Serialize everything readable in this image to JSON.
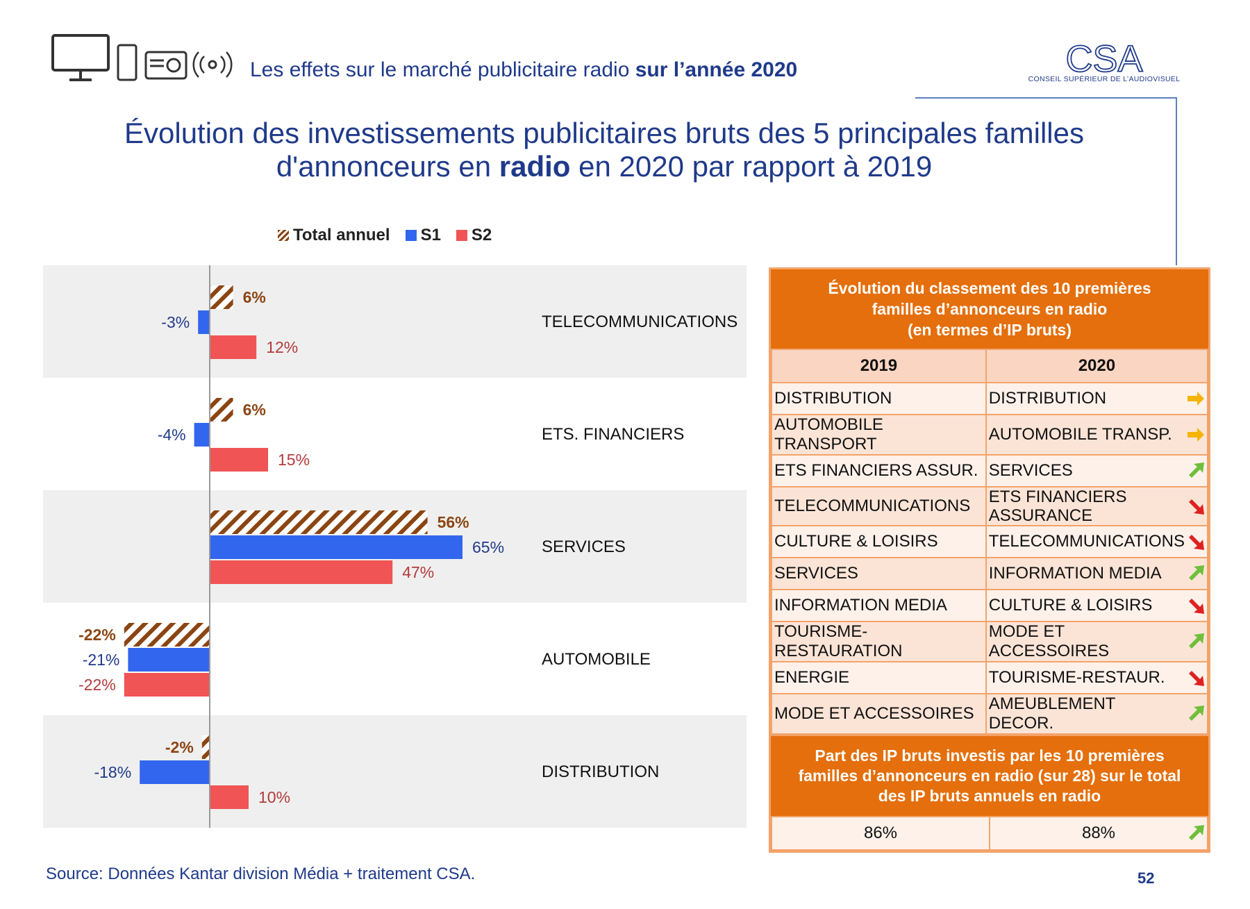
{
  "header": {
    "title_regular": "Les effets sur le marché publicitaire radio ",
    "title_bold": "sur l’année 2020"
  },
  "logo": {
    "mark": "CSA",
    "subtitle": "CONSEIL SUPÉRIEUR DE L’AUDIOVISUEL"
  },
  "title": {
    "line1": "Évolution des investissements publicitaires bruts des 5 principales familles",
    "line2_pre": "d'annonceurs en ",
    "line2_bold": "radio",
    "line2_post": " en 2020 par rapport à 2019"
  },
  "legend": {
    "total": "Total annuel",
    "s1": "S1",
    "s2": "S2"
  },
  "colors": {
    "s1": "#3366ee",
    "s2": "#f05454",
    "total": "#8b4513",
    "band": "#efefef",
    "orange": "#e46f0c"
  },
  "chart_data": {
    "type": "bar",
    "orientation": "horizontal",
    "categories": [
      "TELECOMMUNICATIONS",
      "ETS. FINANCIERS",
      "SERVICES",
      "AUTOMOBILE",
      "DISTRIBUTION"
    ],
    "series": [
      {
        "name": "Total annuel",
        "values": [
          6,
          6,
          56,
          -22,
          -2
        ],
        "labels": [
          "6%",
          "6%",
          "56%",
          "-22%",
          "-2%"
        ],
        "pattern": "hatched"
      },
      {
        "name": "S1",
        "values": [
          -3,
          -4,
          65,
          -21,
          -18
        ],
        "labels": [
          "-3%",
          "-4%",
          "65%",
          "-21%",
          "-18%"
        ]
      },
      {
        "name": "S2",
        "values": [
          12,
          15,
          47,
          -22,
          10
        ],
        "labels": [
          "12%",
          "15%",
          "47%",
          "-22%",
          "10%"
        ]
      }
    ],
    "unit": "%",
    "legend_position": "top"
  },
  "ranking": {
    "header_lines": [
      "Évolution du classement des 10 premières",
      "familles d’annonceurs en radio",
      "(en termes d’IP bruts)"
    ],
    "col_2019": "2019",
    "col_2020": "2020",
    "rows": [
      {
        "y2019": "DISTRIBUTION",
        "y2020": "DISTRIBUTION",
        "trend": "stable"
      },
      {
        "y2019": "AUTOMOBILE TRANSPORT",
        "y2020": "AUTOMOBILE TRANSP.",
        "trend": "stable"
      },
      {
        "y2019": "ETS FINANCIERS ASSUR.",
        "y2020": "SERVICES",
        "trend": "up"
      },
      {
        "y2019": "TELECOMMUNICATIONS",
        "y2020": "ETS FINANCIERS ASSURANCE",
        "trend": "down"
      },
      {
        "y2019": "CULTURE & LOISIRS",
        "y2020": "TELECOMMUNICATIONS",
        "trend": "down"
      },
      {
        "y2019": "SERVICES",
        "y2020": "INFORMATION MEDIA",
        "trend": "up"
      },
      {
        "y2019": "INFORMATION MEDIA",
        "y2020": "CULTURE & LOISIRS",
        "trend": "down"
      },
      {
        "y2019": "TOURISME-RESTAURATION",
        "y2020": "MODE ET ACCESSOIRES",
        "trend": "up"
      },
      {
        "y2019": "ENERGIE",
        "y2020": "TOURISME-RESTAUR.",
        "trend": "down"
      },
      {
        "y2019": "MODE ET ACCESSOIRES",
        "y2020": "AMEUBLEMENT DECOR.",
        "trend": "up"
      }
    ],
    "footer_lines": [
      "Part des IP bruts investis par les 10  premières",
      "familles d’annonceurs en radio (sur 28) sur le total",
      "des IP bruts annuels en radio"
    ],
    "share": {
      "v2019": "86%",
      "v2020": "88%",
      "trend": "up"
    }
  },
  "source": "Source: Données Kantar division Média + traitement CSA.",
  "page_number": "52"
}
